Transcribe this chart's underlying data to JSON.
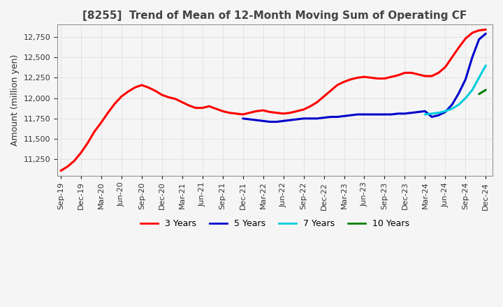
{
  "title": "[8255]  Trend of Mean of 12-Month Moving Sum of Operating CF",
  "ylabel": "Amount (million yen)",
  "ylim": [
    11050,
    12900
  ],
  "yticks": [
    11250,
    11500,
    11750,
    12000,
    12250,
    12500,
    12750
  ],
  "background_color": "#f5f5f5",
  "grid_color": "#bbbbbb",
  "series": {
    "3 Years": {
      "color": "#ff0000",
      "x": [
        0,
        1,
        2,
        3,
        4,
        5,
        6,
        7,
        8,
        9,
        10,
        11,
        12,
        13,
        14,
        15,
        16,
        17,
        18,
        19,
        20,
        21,
        22,
        23,
        24,
        25,
        26,
        27,
        28,
        29,
        30,
        31,
        32,
        33,
        34,
        35,
        36,
        37,
        38,
        39,
        40,
        41,
        42,
        43,
        44,
        45,
        46,
        47,
        48,
        49,
        50,
        51,
        52,
        53,
        54,
        55,
        56,
        57,
        58,
        59,
        60,
        61,
        62,
        63
      ],
      "y": [
        11110,
        11160,
        11230,
        11330,
        11450,
        11590,
        11700,
        11820,
        11930,
        12020,
        12080,
        12130,
        12160,
        12130,
        12090,
        12040,
        12010,
        11990,
        11950,
        11910,
        11880,
        11880,
        11900,
        11870,
        11840,
        11820,
        11810,
        11800,
        11820,
        11840,
        11850,
        11830,
        11820,
        11810,
        11820,
        11840,
        11860,
        11900,
        11950,
        12020,
        12090,
        12160,
        12200,
        12230,
        12250,
        12260,
        12250,
        12240,
        12240,
        12260,
        12280,
        12310,
        12310,
        12290,
        12270,
        12270,
        12310,
        12380,
        12500,
        12620,
        12730,
        12800,
        12830,
        12840
      ]
    },
    "5 Years": {
      "color": "#0000cc",
      "x": [
        27,
        28,
        29,
        30,
        31,
        32,
        33,
        34,
        35,
        36,
        37,
        38,
        39,
        40,
        41,
        42,
        43,
        44,
        45,
        46,
        47,
        48,
        49,
        50,
        51,
        52,
        53,
        54,
        55,
        56,
        57,
        58,
        59,
        60,
        61,
        62,
        63
      ],
      "y": [
        11750,
        11740,
        11730,
        11720,
        11710,
        11710,
        11720,
        11730,
        11740,
        11750,
        11750,
        11750,
        11760,
        11770,
        11770,
        11780,
        11790,
        11800,
        11800,
        11800,
        11800,
        11800,
        11800,
        11810,
        11810,
        11820,
        11830,
        11840,
        11770,
        11790,
        11830,
        11920,
        12060,
        12230,
        12500,
        12720,
        12790
      ]
    },
    "7 Years": {
      "color": "#00ccdd",
      "x": [
        54,
        55,
        56,
        57,
        58,
        59,
        60,
        61,
        62,
        63
      ],
      "y": [
        11800,
        11810,
        11820,
        11840,
        11870,
        11920,
        12000,
        12100,
        12250,
        12400
      ]
    },
    "10 Years": {
      "color": "#008000",
      "x": [
        62,
        63
      ],
      "y": [
        12050,
        12100
      ]
    }
  },
  "xtick_labels": [
    "Sep-19",
    "Dec-19",
    "Mar-20",
    "Jun-20",
    "Sep-20",
    "Dec-20",
    "Mar-21",
    "Jun-21",
    "Sep-21",
    "Dec-21",
    "Mar-22",
    "Jun-22",
    "Sep-22",
    "Dec-22",
    "Mar-23",
    "Jun-23",
    "Sep-23",
    "Dec-23",
    "Mar-24",
    "Jun-24",
    "Sep-24",
    "Dec-24"
  ],
  "xtick_positions": [
    0,
    3,
    6,
    9,
    12,
    15,
    18,
    21,
    24,
    27,
    30,
    33,
    36,
    39,
    42,
    45,
    48,
    51,
    54,
    57,
    60,
    63
  ],
  "linewidth": 2.2,
  "legend_labels": [
    "3 Years",
    "5 Years",
    "7 Years",
    "10 Years"
  ],
  "legend_colors": [
    "#ff0000",
    "#0000cc",
    "#00ccdd",
    "#008000"
  ]
}
